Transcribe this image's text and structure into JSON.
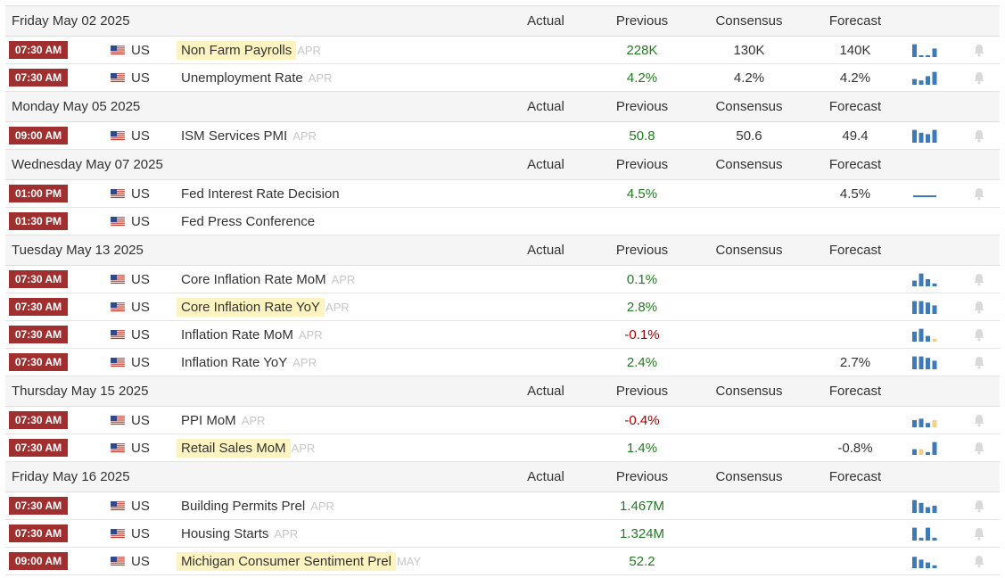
{
  "headers": {
    "actual": "Actual",
    "previous": "Previous",
    "consensus": "Consensus",
    "forecast": "Forecast"
  },
  "colors": {
    "time_badge": "#a03030",
    "positive": "#217a21",
    "negative": "#a60000",
    "highlight": "#fdf3c0",
    "spark_bar": "#3e7ab5",
    "spark_neg": "#f2d08a",
    "reference": "#c7c7c7"
  },
  "days": [
    {
      "date": "Friday May 02 2025",
      "events": [
        {
          "time": "07:30 AM",
          "country": "US",
          "name": "Non Farm Payrolls",
          "ref": "APR",
          "highlight": true,
          "actual": "",
          "previous": "228K",
          "prev_tone": "pos",
          "consensus": "130K",
          "forecast": "140K",
          "spark": [
            0.9,
            0.1,
            0.1,
            0.6
          ],
          "spark_neg": []
        },
        {
          "time": "07:30 AM",
          "country": "US",
          "name": "Unemployment Rate",
          "ref": "APR",
          "highlight": false,
          "actual": "",
          "previous": "4.2%",
          "prev_tone": "pos",
          "consensus": "4.2%",
          "forecast": "4.2%",
          "spark": [
            0.4,
            0.3,
            0.6,
            0.9
          ],
          "spark_neg": []
        }
      ]
    },
    {
      "date": "Monday May 05 2025",
      "events": [
        {
          "time": "09:00 AM",
          "country": "US",
          "name": "ISM Services PMI",
          "ref": "APR",
          "highlight": false,
          "actual": "",
          "previous": "50.8",
          "prev_tone": "pos",
          "consensus": "50.6",
          "forecast": "49.4",
          "spark": [
            0.9,
            0.7,
            0.6,
            0.9
          ],
          "spark_neg": []
        }
      ]
    },
    {
      "date": "Wednesday May 07 2025",
      "events": [
        {
          "time": "01:00 PM",
          "country": "US",
          "name": "Fed Interest Rate Decision",
          "ref": "",
          "highlight": false,
          "actual": "",
          "previous": "4.5%",
          "prev_tone": "pos",
          "consensus": "",
          "forecast": "4.5%",
          "spark": [],
          "spark_neg": [],
          "spark_line": true
        },
        {
          "time": "01:30 PM",
          "country": "US",
          "name": "Fed Press Conference",
          "ref": "",
          "highlight": false,
          "actual": "",
          "previous": "",
          "prev_tone": "pos",
          "consensus": "",
          "forecast": "",
          "spark": [],
          "spark_neg": []
        }
      ]
    },
    {
      "date": "Tuesday May 13 2025",
      "events": [
        {
          "time": "07:30 AM",
          "country": "US",
          "name": "Core Inflation Rate MoM",
          "ref": "APR",
          "highlight": false,
          "actual": "",
          "previous": "0.1%",
          "prev_tone": "pos",
          "consensus": "",
          "forecast": "",
          "spark": [
            0.4,
            0.9,
            0.5,
            0.2
          ],
          "spark_neg": []
        },
        {
          "time": "07:30 AM",
          "country": "US",
          "name": "Core Inflation Rate YoY",
          "ref": "APR",
          "highlight": true,
          "actual": "",
          "previous": "2.8%",
          "prev_tone": "pos",
          "consensus": "",
          "forecast": "",
          "spark": [
            0.9,
            0.9,
            0.8,
            0.6
          ],
          "spark_neg": []
        },
        {
          "time": "07:30 AM",
          "country": "US",
          "name": "Inflation Rate MoM",
          "ref": "APR",
          "highlight": false,
          "actual": "",
          "previous": "-0.1%",
          "prev_tone": "neg",
          "consensus": "",
          "forecast": "",
          "spark": [
            0.7,
            0.9,
            0.4,
            0.2
          ],
          "spark_neg": [
            3
          ]
        },
        {
          "time": "07:30 AM",
          "country": "US",
          "name": "Inflation Rate YoY",
          "ref": "APR",
          "highlight": false,
          "actual": "",
          "previous": "2.4%",
          "prev_tone": "pos",
          "consensus": "",
          "forecast": "2.7%",
          "spark": [
            0.9,
            0.9,
            0.8,
            0.6
          ],
          "spark_neg": []
        }
      ]
    },
    {
      "date": "Thursday May 15 2025",
      "events": [
        {
          "time": "07:30 AM",
          "country": "US",
          "name": "PPI MoM",
          "ref": "APR",
          "highlight": false,
          "actual": "",
          "previous": "-0.4%",
          "prev_tone": "neg",
          "consensus": "",
          "forecast": "",
          "spark": [
            0.5,
            0.6,
            0.3,
            0.5
          ],
          "spark_neg": [
            3
          ]
        },
        {
          "time": "07:30 AM",
          "country": "US",
          "name": "Retail Sales MoM",
          "ref": "APR",
          "highlight": true,
          "actual": "",
          "previous": "1.4%",
          "prev_tone": "pos",
          "consensus": "",
          "forecast": "-0.8%",
          "spark": [
            0.4,
            0.4,
            0.2,
            0.9
          ],
          "spark_neg": [
            1
          ]
        }
      ]
    },
    {
      "date": "Friday May 16 2025",
      "events": [
        {
          "time": "07:30 AM",
          "country": "US",
          "name": "Building Permits Prel",
          "ref": "APR",
          "highlight": false,
          "actual": "",
          "previous": "1.467M",
          "prev_tone": "pos",
          "consensus": "",
          "forecast": "",
          "spark": [
            0.9,
            0.7,
            0.4,
            0.5
          ],
          "spark_neg": []
        },
        {
          "time": "07:30 AM",
          "country": "US",
          "name": "Housing Starts",
          "ref": "APR",
          "highlight": false,
          "actual": "",
          "previous": "1.324M",
          "prev_tone": "pos",
          "consensus": "",
          "forecast": "",
          "spark": [
            0.9,
            0.2,
            0.9,
            0.2
          ],
          "spark_neg": []
        },
        {
          "time": "09:00 AM",
          "country": "US",
          "name": "Michigan Consumer Sentiment Prel",
          "ref": "MAY",
          "highlight": true,
          "actual": "",
          "previous": "52.2",
          "prev_tone": "pos",
          "consensus": "",
          "forecast": "",
          "spark": [
            0.8,
            0.6,
            0.4,
            0.2
          ],
          "spark_neg": []
        }
      ]
    }
  ]
}
